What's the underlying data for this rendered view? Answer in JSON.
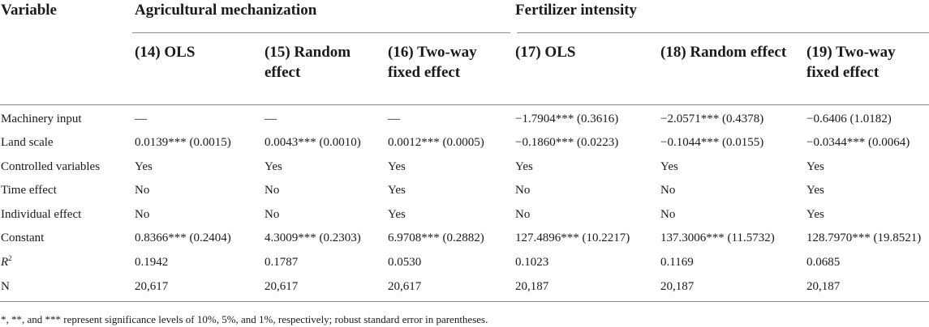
{
  "header": {
    "variable_label": "Variable",
    "group1_label": "Agricultural mechanization",
    "group2_label": "Fertilizer intensity",
    "columns": [
      "(14) OLS",
      "(15) Random effect",
      "(16) Two-way fixed effect",
      "(17) OLS",
      "(18) Random effect",
      "(19) Two-way fixed effect"
    ]
  },
  "rows": [
    {
      "label": "Machinery input",
      "values": [
        "—",
        "—",
        "—",
        "−1.7904*** (0.3616)",
        "−2.0571*** (0.4378)",
        "−0.6406 (1.0182)"
      ]
    },
    {
      "label": "Land scale",
      "values": [
        "0.0139*** (0.0015)",
        "0.0043*** (0.0010)",
        "0.0012*** (0.0005)",
        "−0.1860*** (0.0223)",
        "−0.1044*** (0.0155)",
        "−0.0344*** (0.0064)"
      ]
    },
    {
      "label": "Controlled variables",
      "values": [
        "Yes",
        "Yes",
        "Yes",
        "Yes",
        "Yes",
        "Yes"
      ]
    },
    {
      "label": "Time effect",
      "values": [
        "No",
        "No",
        "Yes",
        "No",
        "No",
        "Yes"
      ]
    },
    {
      "label": "Individual effect",
      "values": [
        "No",
        "No",
        "Yes",
        "No",
        "No",
        "Yes"
      ]
    },
    {
      "label": "Constant",
      "values": [
        "0.8366*** (0.2404)",
        "4.3009*** (0.2303)",
        "6.9708*** (0.2882)",
        "127.4896*** (10.2217)",
        "137.3006*** (11.5732)",
        "128.7970*** (19.8521)"
      ]
    },
    {
      "label_main": "R",
      "label_sup": "2",
      "values": [
        "0.1942",
        "0.1787",
        "0.0530",
        "0.1023",
        "0.1169",
        "0.0685"
      ]
    },
    {
      "label": "N",
      "values": [
        "20,617",
        "20,617",
        "20,617",
        "20,187",
        "20,187",
        "20,187"
      ]
    }
  ],
  "footnote": "*, **, and *** represent significance levels of 10%, 5%, and 1%, respectively; robust standard error in parentheses."
}
